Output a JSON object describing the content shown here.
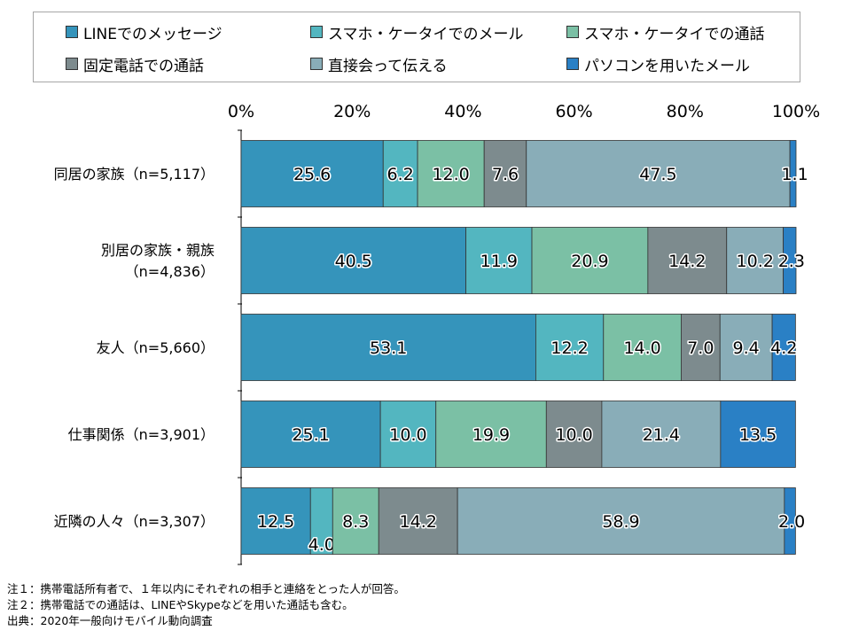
{
  "chart_data": {
    "type": "bar",
    "orientation": "horizontal",
    "stacked": true,
    "percent_stacked": true,
    "categories": [
      [
        "同居の家族（n=5,117）"
      ],
      [
        "別居の家族・親族",
        "（n=4,836）"
      ],
      [
        "友人（n=5,660）"
      ],
      [
        "仕事関係（n=3,901）"
      ],
      [
        "近隣の人々（n=3,307）"
      ]
    ],
    "series": [
      {
        "name": "LINEでのメッセージ",
        "color": "#3594bb",
        "values": [
          25.6,
          40.5,
          53.1,
          25.1,
          12.5
        ]
      },
      {
        "name": "スマホ・ケータイでのメール",
        "color": "#53b6c0",
        "values": [
          6.2,
          11.9,
          12.2,
          10.0,
          4.0
        ]
      },
      {
        "name": "スマホ・ケータイでの通話",
        "color": "#7bc0a5",
        "values": [
          12.0,
          20.9,
          14.0,
          19.9,
          8.3
        ]
      },
      {
        "name": "固定電話での通話",
        "color": "#7d8b8e",
        "values": [
          7.6,
          14.2,
          7.0,
          10.0,
          14.2
        ]
      },
      {
        "name": "直接会って伝える",
        "color": "#89adb8",
        "values": [
          47.5,
          10.2,
          9.4,
          21.4,
          58.9
        ]
      },
      {
        "name": "パソコンを用いたメール",
        "color": "#2a80c5",
        "values": [
          1.1,
          2.3,
          4.2,
          13.5,
          2.0
        ]
      }
    ],
    "x_ticks": [
      "0%",
      "20%",
      "40%",
      "60%",
      "80%",
      "100%"
    ],
    "xlim": [
      0,
      100
    ],
    "legend_position": "top"
  },
  "notes": [
    "注１：携帯電話所有者で、１年以内にそれぞれの相手と連絡をとった人が回答。",
    "注２：携帯電話での通話は、LINEやSkypeなどを用いた通話も含む。",
    "出典：2020年一般向けモバイル動向調査"
  ]
}
